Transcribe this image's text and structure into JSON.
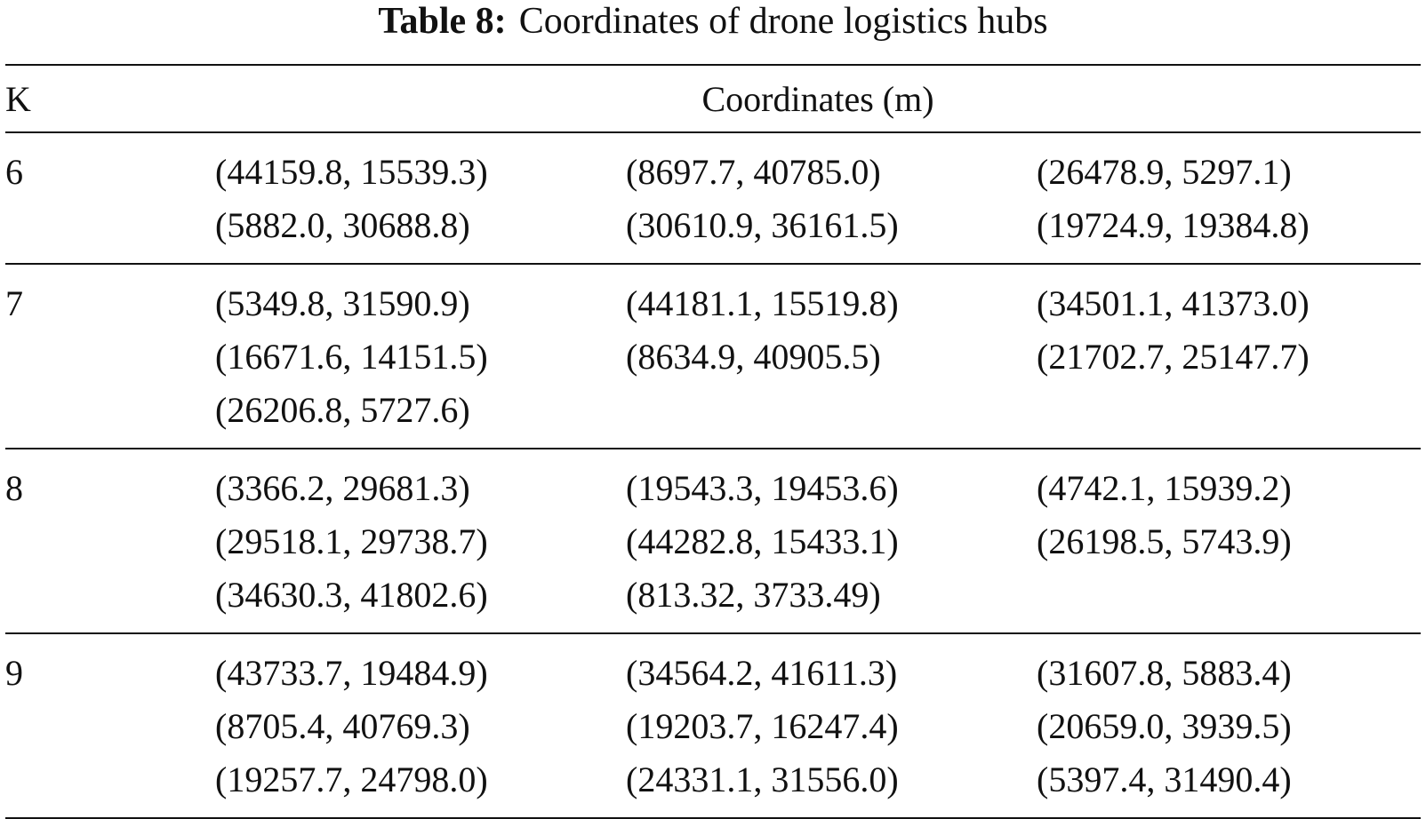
{
  "caption": {
    "label": "Table 8:",
    "text": "Coordinates of drone logistics hubs"
  },
  "table": {
    "headers": {
      "k": "K",
      "coordinates": "Coordinates (m)"
    },
    "rows": [
      {
        "k": "6",
        "columns": [
          [
            "(44159.8, 15539.3)",
            "(5882.0, 30688.8)"
          ],
          [
            "(8697.7, 40785.0)",
            "(30610.9, 36161.5)"
          ],
          [
            "(26478.9, 5297.1)",
            "(19724.9, 19384.8)"
          ]
        ]
      },
      {
        "k": "7",
        "columns": [
          [
            "(5349.8, 31590.9)",
            "(16671.6, 14151.5)",
            "(26206.8, 5727.6)"
          ],
          [
            "(44181.1, 15519.8)",
            "(8634.9, 40905.5)"
          ],
          [
            "(34501.1, 41373.0)",
            "(21702.7, 25147.7)"
          ]
        ]
      },
      {
        "k": "8",
        "columns": [
          [
            "(3366.2, 29681.3)",
            "(29518.1, 29738.7)",
            "(34630.3, 41802.6)"
          ],
          [
            "(19543.3, 19453.6)",
            "(44282.8, 15433.1)",
            "(813.32, 3733.49)"
          ],
          [
            "(4742.1, 15939.2)",
            "(26198.5, 5743.9)"
          ]
        ]
      },
      {
        "k": "9",
        "columns": [
          [
            "(43733.7, 19484.9)",
            "(8705.4, 40769.3)",
            "(19257.7, 24798.0)"
          ],
          [
            "(34564.2, 41611.3)",
            "(19203.7, 16247.4)",
            "(24331.1, 31556.0)"
          ],
          [
            "(31607.8, 5883.4)",
            "(20659.0, 3939.5)",
            "(5397.4, 31490.4)"
          ]
        ]
      }
    ]
  }
}
